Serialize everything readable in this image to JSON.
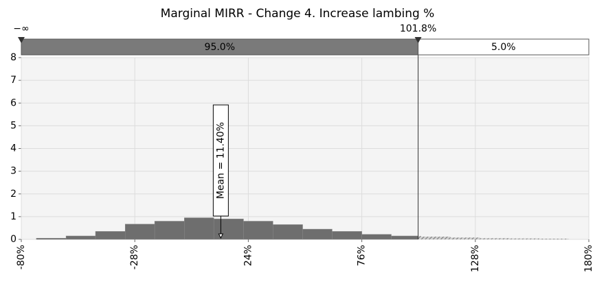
{
  "chart_data": {
    "type": "histogram",
    "title": "Marginal MIRR - Change 4. Increase lambing %",
    "bins": [
      -73.1,
      -59.5,
      -46.0,
      -32.4,
      -18.9,
      -5.3,
      8.2,
      21.8,
      35.3,
      48.9,
      62.4,
      76.0,
      89.5,
      103.1,
      116.6,
      130.2,
      143.7,
      157.3,
      170.8
    ],
    "values": [
      0.05,
      0.15,
      0.35,
      0.67,
      0.8,
      0.95,
      0.9,
      0.8,
      0.65,
      0.45,
      0.35,
      0.22,
      0.15,
      0.12,
      0.08,
      0.05,
      0.04,
      0.03
    ],
    "color": "#6e6e6e",
    "xlim": [
      -80,
      180
    ],
    "xticks": [
      {
        "value": -80,
        "label": "-80%"
      },
      {
        "value": -28,
        "label": "-28%"
      },
      {
        "value": 24,
        "label": "24%"
      },
      {
        "value": 76,
        "label": "76%"
      },
      {
        "value": 128,
        "label": "128%"
      },
      {
        "value": 180,
        "label": "180%"
      }
    ],
    "ylim": [
      0,
      8
    ],
    "yticks": [
      0,
      1,
      2,
      3,
      4,
      5,
      6,
      7,
      8
    ],
    "grid": true,
    "left_delimiter_label": "−∞",
    "delimiter": {
      "value": 101.8,
      "label": "101.8%"
    },
    "region_labels": [
      "95.0%",
      "5.0%"
    ],
    "mean": {
      "value": 11.4,
      "label": "Mean = 11.40%"
    }
  }
}
